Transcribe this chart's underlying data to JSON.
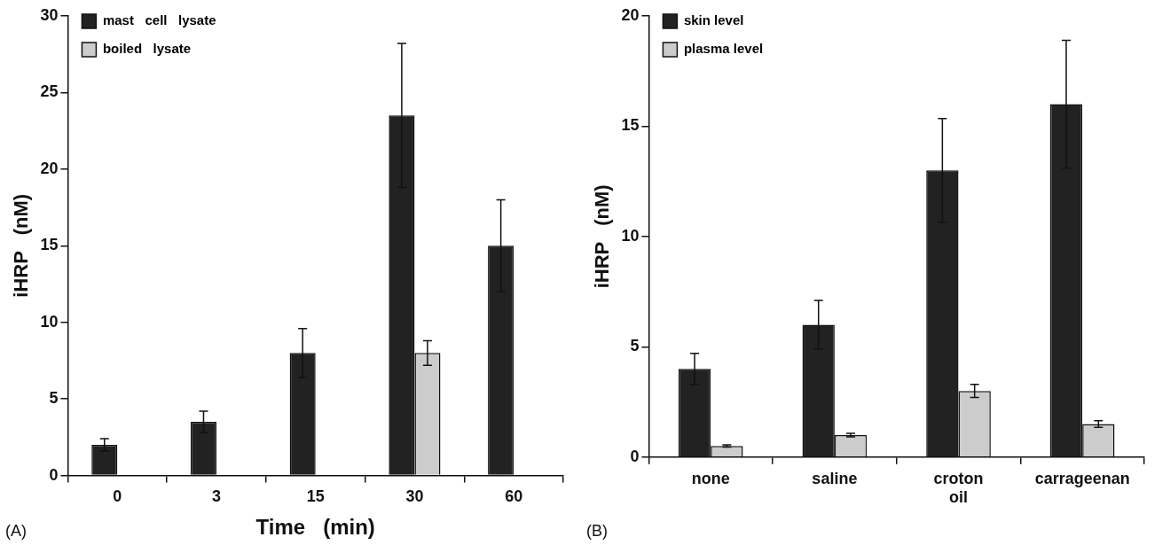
{
  "chart_data": [
    {
      "type": "bar",
      "xlabel": "Time   (min)",
      "ylabel": "iHRP   (nM)",
      "categories": [
        "0",
        "3",
        "15",
        "30",
        "60"
      ],
      "series": [
        {
          "name": "mast   cell   lysate",
          "color": "#222222",
          "values": [
            2,
            3.5,
            8,
            23.5,
            15
          ],
          "errors": [
            0.4,
            0.7,
            1.6,
            4.7,
            3
          ]
        },
        {
          "name": "boiled   lysate",
          "color": "#cccccc",
          "values": [
            null,
            null,
            null,
            8,
            null
          ],
          "errors": [
            null,
            null,
            null,
            0.8,
            null
          ]
        }
      ],
      "ylim": [
        0,
        30
      ],
      "yticks": [
        0,
        5,
        10,
        15,
        20,
        25,
        30
      ],
      "grid": false,
      "legend": "top left",
      "annotations": [
        "(A)"
      ]
    },
    {
      "type": "bar",
      "ylabel": "iHRP   (nM)",
      "categories": [
        "none",
        "saline",
        "croton oil",
        "carrageenan"
      ],
      "series": [
        {
          "name": "skin level",
          "color": "#222222",
          "values": [
            4,
            6,
            13,
            16
          ],
          "errors": [
            0.7,
            1.1,
            2.35,
            2.9
          ]
        },
        {
          "name": "plasma level",
          "color": "#cccccc",
          "values": [
            0.5,
            1,
            3,
            1.5
          ],
          "errors": [
            0.05,
            0.08,
            0.3,
            0.15
          ]
        }
      ],
      "ylim": [
        0,
        20
      ],
      "yticks": [
        0,
        5,
        10,
        15,
        20
      ],
      "grid": false,
      "legend": "top left",
      "annotations": [
        "(B)"
      ]
    }
  ]
}
